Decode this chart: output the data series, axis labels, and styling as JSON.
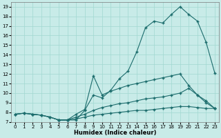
{
  "xlabel": "Humidex (Indice chaleur)",
  "bg_color": "#c8ebe8",
  "grid_color": "#a0d8d0",
  "line_color": "#1a6b6b",
  "xlim": [
    -0.5,
    23.5
  ],
  "ylim": [
    7,
    19.5
  ],
  "yticks": [
    7,
    8,
    9,
    10,
    11,
    12,
    13,
    14,
    15,
    16,
    17,
    18,
    19
  ],
  "xticks": [
    0,
    1,
    2,
    3,
    4,
    5,
    6,
    7,
    8,
    9,
    10,
    11,
    12,
    13,
    14,
    15,
    16,
    17,
    18,
    19,
    20,
    21,
    22,
    23
  ],
  "line1_x": [
    0,
    1,
    2,
    3,
    4,
    5,
    6,
    7,
    8,
    9,
    10,
    11,
    12,
    13,
    14,
    15,
    16,
    17,
    18,
    19,
    20,
    21,
    22,
    23
  ],
  "line1_y": [
    7.8,
    7.9,
    7.8,
    7.7,
    7.5,
    7.2,
    7.2,
    7.2,
    8.2,
    9.8,
    9.5,
    10.3,
    11.5,
    12.3,
    14.3,
    16.8,
    17.5,
    17.3,
    18.2,
    19.0,
    18.2,
    17.5,
    15.3,
    12.1
  ],
  "line2_x": [
    5,
    6,
    7,
    8,
    9,
    10,
    11,
    12,
    13,
    14,
    15,
    16,
    17,
    18,
    19,
    20,
    21,
    22,
    23
  ],
  "line2_y": [
    7.2,
    7.2,
    7.8,
    8.3,
    11.8,
    9.8,
    10.2,
    10.5,
    10.8,
    11.0,
    11.2,
    11.4,
    11.6,
    11.8,
    12.0,
    10.8,
    9.8,
    9.2,
    8.4
  ],
  "line3_x": [
    0,
    1,
    2,
    3,
    4,
    5,
    6,
    7,
    8,
    9,
    10,
    11,
    12,
    13,
    14,
    15,
    16,
    17,
    18,
    19,
    20,
    21,
    22,
    23
  ],
  "line3_y": [
    7.8,
    7.9,
    7.8,
    7.7,
    7.5,
    7.2,
    7.2,
    7.5,
    7.8,
    8.2,
    8.5,
    8.7,
    8.9,
    9.0,
    9.2,
    9.4,
    9.5,
    9.6,
    9.8,
    10.0,
    10.5,
    9.8,
    9.0,
    8.4
  ],
  "line4_x": [
    0,
    1,
    2,
    3,
    4,
    5,
    6,
    7,
    8,
    9,
    10,
    11,
    12,
    13,
    14,
    15,
    16,
    17,
    18,
    19,
    20,
    21,
    22,
    23
  ],
  "line4_y": [
    7.8,
    7.9,
    7.8,
    7.7,
    7.5,
    7.2,
    7.2,
    7.3,
    7.5,
    7.7,
    7.8,
    7.9,
    8.0,
    8.1,
    8.2,
    8.2,
    8.3,
    8.4,
    8.5,
    8.6,
    8.6,
    8.5,
    8.4,
    8.4
  ]
}
